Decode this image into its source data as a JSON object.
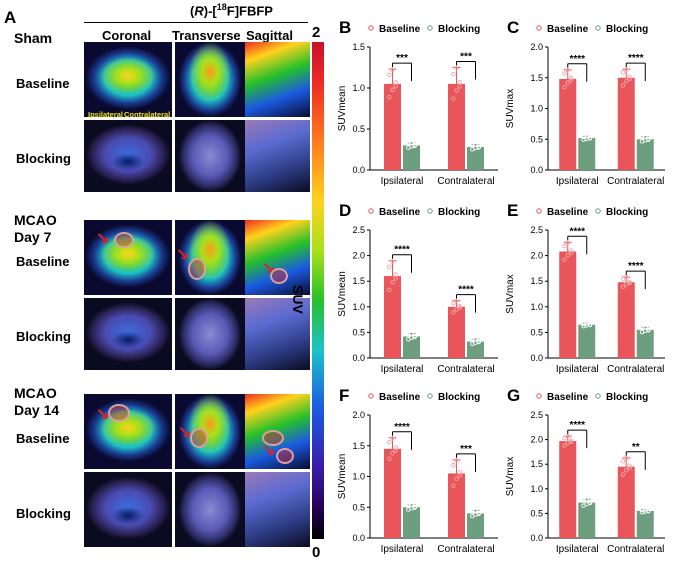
{
  "panel_a": {
    "letter": "A",
    "tracer_prefix": "(",
    "tracer_r": "R",
    "tracer_mid": ")-[",
    "tracer_sup": "18",
    "tracer_suffix": "F]FBFP",
    "views": [
      "Coronal",
      "Transverse",
      "Sagittal"
    ],
    "groups": [
      {
        "title_line1": "Sham",
        "title_line2": "",
        "row_labels": [
          "Baseline",
          "Blocking"
        ]
      },
      {
        "title_line1": "MCAO",
        "title_line2": "Day 7",
        "row_labels": [
          "Baseline",
          "Blocking"
        ]
      },
      {
        "title_line1": "MCAO",
        "title_line2": "Day 14",
        "row_labels": [
          "Baseline",
          "Blocking"
        ]
      }
    ],
    "region_labels": [
      "Ipsilateral",
      "Contralateral"
    ],
    "colorbar": {
      "max": "2",
      "min": "0",
      "label": "SUV"
    },
    "colors": {
      "highlight_text": "#f2e600",
      "arrow": "#e02020",
      "colorbar_top": "#c8102e",
      "colorbar_bottom": "#000000"
    }
  },
  "legend": {
    "baseline": "Baseline",
    "blocking": "Blocking"
  },
  "colors": {
    "baseline": "#e8555b",
    "blocking": "#6e9e80"
  },
  "chart_data": [
    {
      "panel": "B",
      "type": "bar",
      "title": "",
      "ylabel": "SUVmean",
      "ylim": [
        0,
        1.5
      ],
      "yticks": [
        "0.0",
        "0.5",
        "1.0",
        "1.5"
      ],
      "categories": [
        "Ipsilateral",
        "Contralateral"
      ],
      "series": [
        {
          "name": "Baseline",
          "values": [
            1.05,
            1.05
          ],
          "err": [
            0.18,
            0.2
          ]
        },
        {
          "name": "Blocking",
          "values": [
            0.3,
            0.28
          ],
          "err": [
            0.03,
            0.03
          ]
        }
      ],
      "significance": [
        "***",
        "***"
      ]
    },
    {
      "panel": "C",
      "type": "bar",
      "title": "",
      "ylabel": "SUVmax",
      "ylim": [
        0,
        2.0
      ],
      "yticks": [
        "0.0",
        "0.5",
        "1.0",
        "1.5",
        "2.0"
      ],
      "categories": [
        "Ipsilateral",
        "Contralateral"
      ],
      "series": [
        {
          "name": "Baseline",
          "values": [
            1.48,
            1.5
          ],
          "err": [
            0.15,
            0.14
          ]
        },
        {
          "name": "Blocking",
          "values": [
            0.52,
            0.5
          ],
          "err": [
            0.03,
            0.04
          ]
        }
      ],
      "significance": [
        "****",
        "****"
      ]
    },
    {
      "panel": "D",
      "type": "bar",
      "title": "",
      "ylabel": "SUVmean",
      "ylim": [
        0,
        2.5
      ],
      "yticks": [
        "0.0",
        "0.5",
        "1.0",
        "1.5",
        "2.0",
        "2.5"
      ],
      "categories": [
        "Ipsilateral",
        "Contralateral"
      ],
      "series": [
        {
          "name": "Baseline",
          "values": [
            1.6,
            1.0
          ],
          "err": [
            0.3,
            0.12
          ]
        },
        {
          "name": "Blocking",
          "values": [
            0.42,
            0.32
          ],
          "err": [
            0.06,
            0.05
          ]
        }
      ],
      "significance": [
        "****",
        "****"
      ]
    },
    {
      "panel": "E",
      "type": "bar",
      "title": "",
      "ylabel": "SUVmax",
      "ylim": [
        0,
        2.5
      ],
      "yticks": [
        "0.0",
        "0.5",
        "1.0",
        "1.5",
        "2.0",
        "2.5"
      ],
      "categories": [
        "Ipsilateral",
        "Contralateral"
      ],
      "series": [
        {
          "name": "Baseline",
          "values": [
            2.08,
            1.48
          ],
          "err": [
            0.18,
            0.1
          ]
        },
        {
          "name": "Blocking",
          "values": [
            0.65,
            0.55
          ],
          "err": [
            0.03,
            0.05
          ]
        }
      ],
      "significance": [
        "****",
        "****"
      ]
    },
    {
      "panel": "F",
      "type": "bar",
      "title": "",
      "ylabel": "SUVmean",
      "ylim": [
        0,
        2.0
      ],
      "yticks": [
        "0.0",
        "0.5",
        "1.0",
        "1.5",
        "2.0"
      ],
      "categories": [
        "Ipsilateral",
        "Contralateral"
      ],
      "series": [
        {
          "name": "Baseline",
          "values": [
            1.45,
            1.05
          ],
          "err": [
            0.18,
            0.22
          ]
        },
        {
          "name": "Blocking",
          "values": [
            0.5,
            0.4
          ],
          "err": [
            0.04,
            0.05
          ]
        }
      ],
      "significance": [
        "****",
        "***"
      ]
    },
    {
      "panel": "G",
      "type": "bar",
      "title": "",
      "ylabel": "SUVmax",
      "ylim": [
        0,
        2.5
      ],
      "yticks": [
        "0.0",
        "0.5",
        "1.0",
        "1.5",
        "2.0",
        "2.5"
      ],
      "categories": [
        "Ipsilateral",
        "Contralateral"
      ],
      "series": [
        {
          "name": "Baseline",
          "values": [
            1.97,
            1.45
          ],
          "err": [
            0.1,
            0.18
          ]
        },
        {
          "name": "Blocking",
          "values": [
            0.72,
            0.55
          ],
          "err": [
            0.07,
            0.03
          ]
        }
      ],
      "significance": [
        "****",
        "**"
      ]
    }
  ]
}
